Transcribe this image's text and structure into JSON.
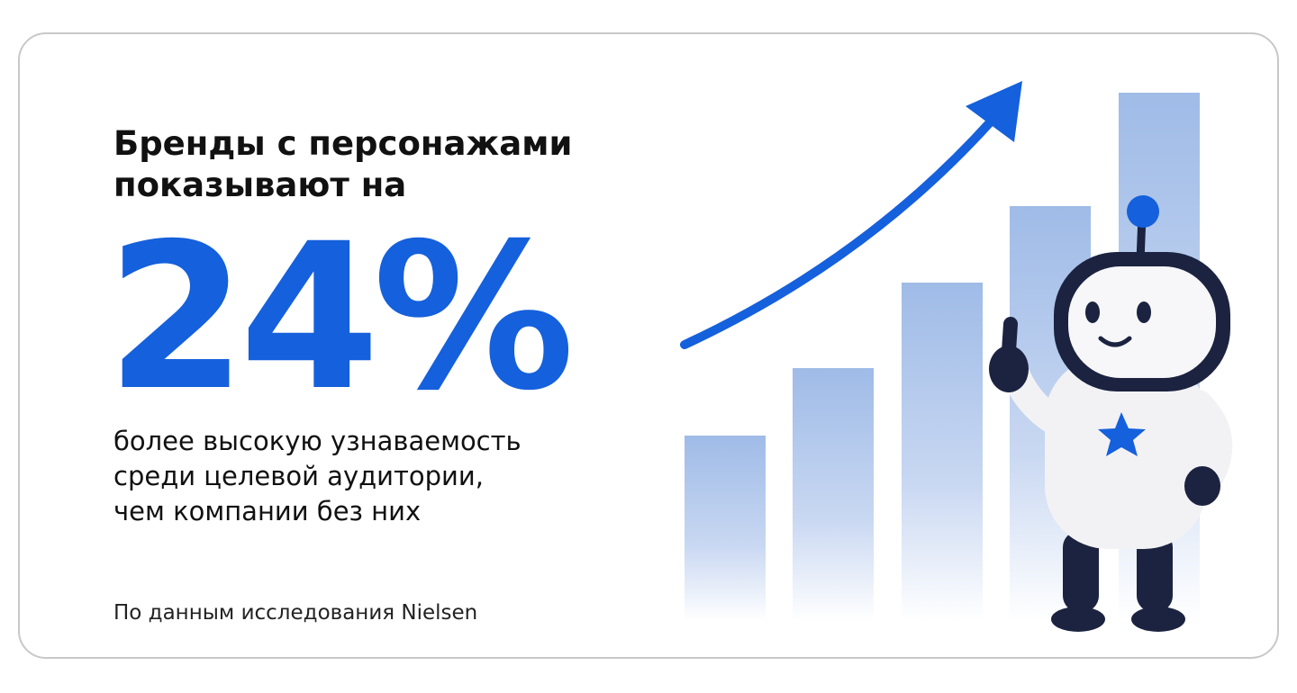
{
  "headline": {
    "lines": [
      "Бренды с персонажами",
      "показывают на"
    ]
  },
  "highlight": "24%",
  "body": {
    "lines": [
      "более высокую узнаваемость",
      "среди целевой аудитории,",
      "чем компании без них"
    ]
  },
  "source": "По данным исследования Nielsen"
}
